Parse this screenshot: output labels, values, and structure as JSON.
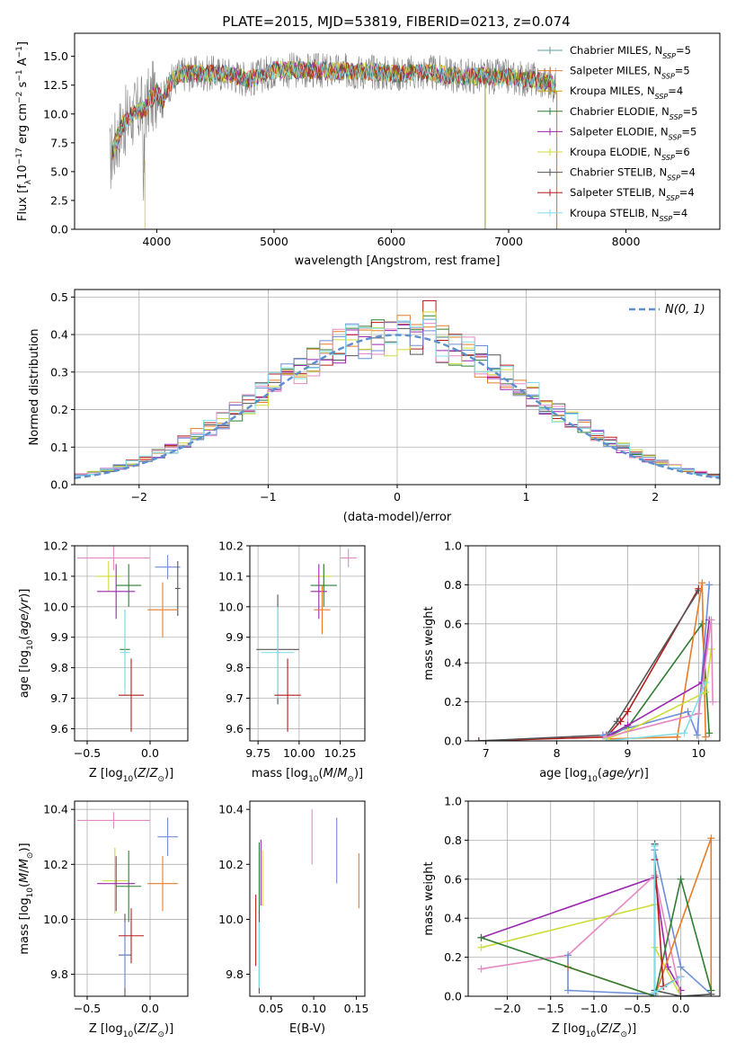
{
  "figure_title": "PLATE=2015, MJD=53819, FIBERID=0213, z=0.074",
  "colors": [
    "#5f9ea0",
    "#e87d2a",
    "#d4a017",
    "#2e7d32",
    "#9c27b0",
    "#cddc39",
    "#555555",
    "#b71c1c",
    "#80deea",
    "#e589c2",
    "#6d8fd6"
  ],
  "chart_data": [
    {
      "id": "spectrum",
      "type": "line",
      "xlabel": "wavelength [Angstrom, rest frame]",
      "ylabel": "Flux [f",
      "ylabel_parts": [
        "Flux [f",
        "λ",
        "10",
        "−17",
        " erg cm",
        "−2",
        " s",
        "−1",
        " A",
        "−1",
        "]"
      ],
      "xlim": [
        3300,
        8800
      ],
      "ylim": [
        0,
        17
      ],
      "xticks": [
        4000,
        5000,
        6000,
        7000,
        8000
      ],
      "yticks": [
        0.0,
        2.5,
        5.0,
        7.5,
        10.0,
        12.5,
        15.0
      ],
      "observed_color": "#808080",
      "continuum_x": [
        3600,
        3650,
        3700,
        3800,
        3900,
        4000,
        4050,
        4100,
        4200,
        4400,
        4600,
        4800,
        5000,
        5200,
        5500,
        5800,
        6000,
        6300,
        6600,
        7000,
        7200,
        7300,
        7400
      ],
      "continuum_y": [
        6.0,
        7.5,
        9.0,
        10.0,
        10.5,
        12.0,
        11.0,
        12.5,
        13.5,
        13.5,
        13.5,
        13.0,
        13.8,
        13.8,
        13.7,
        13.7,
        13.5,
        13.6,
        13.3,
        13.2,
        13.0,
        12.8,
        12.5
      ],
      "legend_position": "upper right",
      "legend": [
        {
          "label": "Chabrier MILES, N",
          "sub": "SSP",
          "suffix": "=5"
        },
        {
          "label": "Salpeter MILES, N",
          "sub": "SSP",
          "suffix": "=5"
        },
        {
          "label": "Kroupa MILES, N",
          "sub": "SSP",
          "suffix": "=4"
        },
        {
          "label": "Chabrier ELODIE, N",
          "sub": "SSP",
          "suffix": "=5"
        },
        {
          "label": "Salpeter ELODIE, N",
          "sub": "SSP",
          "suffix": "=5"
        },
        {
          "label": "Kroupa ELODIE, N",
          "sub": "SSP",
          "suffix": "=6"
        },
        {
          "label": "Chabrier STELIB, N",
          "sub": "SSP",
          "suffix": "=4"
        },
        {
          "label": "Salpeter STELIB, N",
          "sub": "SSP",
          "suffix": "=4"
        },
        {
          "label": "Kroupa STELIB, N",
          "sub": "SSP",
          "suffix": "=4"
        }
      ],
      "legend_color_index": [
        0,
        1,
        2,
        3,
        4,
        5,
        6,
        7,
        8
      ]
    },
    {
      "id": "residuals",
      "type": "histogram",
      "xlabel": "(data-model)/error",
      "ylabel": "Normed distribution",
      "xlim": [
        -2.5,
        2.5
      ],
      "ylim": [
        0,
        0.52
      ],
      "xticks": [
        -2,
        -1,
        0,
        1,
        2
      ],
      "yticks": [
        0.0,
        0.1,
        0.2,
        0.3,
        0.4,
        0.5
      ],
      "grid": true,
      "gaussian_label": "N(0, 1)",
      "gaussian_color": "#5b8fd0",
      "legend_position": "upper right",
      "bin_width": 0.1,
      "series_colors": [
        "#2e7d32",
        "#e87d2a",
        "#555555",
        "#b71c1c",
        "#9c27b0",
        "#cddc39",
        "#e589c2",
        "#6d8fd6",
        "#80deea"
      ],
      "peak_values": [
        0.45,
        0.42,
        0.44,
        0.49,
        0.44,
        0.46,
        0.43,
        0.41,
        0.44
      ]
    },
    {
      "id": "age_vs_Z",
      "type": "errorbar",
      "xlabel": "Z [log10(Z/Z⊙)]",
      "ylabel": "age  [log10(age/yr)]",
      "xlim": [
        -0.6,
        0.3
      ],
      "ylim": [
        9.56,
        10.2
      ],
      "xticks": [
        -0.5,
        0.0
      ],
      "yticks": [
        9.6,
        9.7,
        9.8,
        9.9,
        10.0,
        10.1,
        10.2
      ],
      "grid": true,
      "points": [
        {
          "x": -0.29,
          "y": 10.16,
          "xerr": 0.29,
          "yerr": 0.04,
          "c": "#e589c2"
        },
        {
          "x": 0.14,
          "y": 10.13,
          "xerr": 0.1,
          "yerr": 0.04,
          "c": "#6d8fd6"
        },
        {
          "x": 0.22,
          "y": 10.06,
          "xerr": 0.02,
          "yerr": 0.09,
          "c": "#555555"
        },
        {
          "x": -0.33,
          "y": 10.1,
          "xerr": 0.1,
          "yerr": 0.05,
          "c": "#cddc39"
        },
        {
          "x": -0.17,
          "y": 10.07,
          "xerr": 0.1,
          "yerr": 0.07,
          "c": "#2e7d32"
        },
        {
          "x": -0.27,
          "y": 10.05,
          "xerr": 0.15,
          "yerr": 0.09,
          "c": "#9c27b0"
        },
        {
          "x": 0.1,
          "y": 9.99,
          "xerr": 0.12,
          "yerr": 0.09,
          "c": "#e87d2a"
        },
        {
          "x": -0.2,
          "y": 9.86,
          "xerr": 0.04,
          "yerr": 0.13,
          "c": "#2e7d32"
        },
        {
          "x": -0.2,
          "y": 9.85,
          "xerr": 0.04,
          "yerr": 0.14,
          "c": "#80deea"
        },
        {
          "x": -0.15,
          "y": 9.71,
          "xerr": 0.1,
          "yerr": 0.12,
          "c": "#b71c1c"
        }
      ]
    },
    {
      "id": "age_vs_mass",
      "type": "errorbar",
      "xlabel": "mass [log10(M/M⊙)]",
      "ylabel": "",
      "xlim": [
        9.7,
        10.4
      ],
      "ylim": [
        9.56,
        10.2
      ],
      "xticks": [
        9.75,
        10.0,
        10.25
      ],
      "yticks": [
        9.6,
        9.7,
        9.8,
        9.9,
        10.0,
        10.1,
        10.2
      ],
      "grid": true,
      "points": [
        {
          "x": 10.3,
          "y": 10.16,
          "xerr": 0.05,
          "yerr": 0.03,
          "c": "#e589c2"
        },
        {
          "x": 10.15,
          "y": 10.1,
          "xerr": 0.05,
          "yerr": 0.04,
          "c": "#cddc39"
        },
        {
          "x": 10.15,
          "y": 10.07,
          "xerr": 0.08,
          "yerr": 0.07,
          "c": "#2e7d32"
        },
        {
          "x": 10.12,
          "y": 10.05,
          "xerr": 0.05,
          "yerr": 0.09,
          "c": "#9c27b0"
        },
        {
          "x": 10.14,
          "y": 9.99,
          "xerr": 0.05,
          "yerr": 0.08,
          "c": "#e87d2a"
        },
        {
          "x": 9.87,
          "y": 9.86,
          "xerr": 0.13,
          "yerr": 0.18,
          "c": "#555555"
        },
        {
          "x": 9.87,
          "y": 9.85,
          "xerr": 0.1,
          "yerr": 0.15,
          "c": "#80deea"
        },
        {
          "x": 9.93,
          "y": 9.71,
          "xerr": 0.08,
          "yerr": 0.12,
          "c": "#b71c1c"
        }
      ]
    },
    {
      "id": "weight_vs_age",
      "type": "line",
      "xlabel": "age  [log10(age/yr)]",
      "ylabel": "mass weight",
      "xlim": [
        6.75,
        10.3
      ],
      "ylim": [
        0,
        1.0
      ],
      "xticks": [
        7,
        8,
        9,
        10
      ],
      "yticks": [
        0.0,
        0.2,
        0.4,
        0.6,
        0.8,
        1.0
      ],
      "grid": true,
      "series": [
        {
          "c": "#b71c1c",
          "x": [
            6.9,
            8.7,
            8.9,
            9.0,
            10.0
          ],
          "y": [
            0.0,
            0.02,
            0.1,
            0.15,
            0.78
          ]
        },
        {
          "c": "#555555",
          "x": [
            6.9,
            8.7,
            8.85,
            10.0
          ],
          "y": [
            0.0,
            0.03,
            0.1,
            0.77
          ]
        },
        {
          "c": "#2e7d32",
          "x": [
            8.7,
            9.0,
            10.05,
            10.15
          ],
          "y": [
            0.02,
            0.07,
            0.6,
            0.04
          ]
        },
        {
          "c": "#e87d2a",
          "x": [
            8.7,
            9.7,
            10.05,
            10.1
          ],
          "y": [
            0.01,
            0.02,
            0.81,
            0.02
          ]
        },
        {
          "c": "#6d8fd6",
          "x": [
            8.65,
            9.85,
            9.98,
            10.15
          ],
          "y": [
            0.03,
            0.15,
            0.03,
            0.8
          ]
        },
        {
          "c": "#9c27b0",
          "x": [
            8.7,
            9.0,
            10.05,
            10.15
          ],
          "y": [
            0.02,
            0.08,
            0.3,
            0.62
          ]
        },
        {
          "c": "#cddc39",
          "x": [
            8.7,
            9.0,
            10.1,
            10.18
          ],
          "y": [
            0.01,
            0.05,
            0.25,
            0.47
          ]
        },
        {
          "c": "#e589c2",
          "x": [
            8.7,
            10.0,
            10.18,
            10.2
          ],
          "y": [
            0.02,
            0.14,
            0.62,
            0.2
          ]
        },
        {
          "c": "#80deea",
          "x": [
            8.7,
            9.8,
            10.1
          ],
          "y": [
            0.0,
            0.04,
            0.3
          ]
        }
      ]
    },
    {
      "id": "mass_vs_Z",
      "type": "errorbar",
      "xlabel": "Z [log10(Z/Z⊙)]",
      "ylabel": "mass [log10(M/M⊙)]",
      "xlim": [
        -0.6,
        0.3
      ],
      "ylim": [
        9.72,
        10.43
      ],
      "xticks": [
        -0.5,
        0.0
      ],
      "yticks": [
        9.8,
        10.0,
        10.2,
        10.4
      ],
      "grid": true,
      "points": [
        {
          "x": -0.29,
          "y": 10.36,
          "xerr": 0.29,
          "yerr": 0.03,
          "c": "#e589c2"
        },
        {
          "x": 0.14,
          "y": 10.3,
          "xerr": 0.08,
          "yerr": 0.07,
          "c": "#6d8fd6"
        },
        {
          "x": -0.28,
          "y": 10.14,
          "xerr": 0.1,
          "yerr": 0.12,
          "c": "#cddc39"
        },
        {
          "x": -0.17,
          "y": 10.12,
          "xerr": 0.1,
          "yerr": 0.13,
          "c": "#2e7d32"
        },
        {
          "x": -0.27,
          "y": 10.13,
          "xerr": 0.15,
          "yerr": 0.1,
          "c": "#9c27b0"
        },
        {
          "x": 0.1,
          "y": 10.13,
          "xerr": 0.12,
          "yerr": 0.1,
          "c": "#e87d2a"
        },
        {
          "x": -0.2,
          "y": 9.87,
          "xerr": 0.05,
          "yerr": 0.15,
          "c": "#555555"
        },
        {
          "x": -0.2,
          "y": 9.87,
          "xerr": 0.04,
          "yerr": 0.12,
          "c": "#6d8fd6"
        },
        {
          "x": -0.15,
          "y": 9.94,
          "xerr": 0.1,
          "yerr": 0.1,
          "c": "#b71c1c"
        }
      ]
    },
    {
      "id": "mass_vs_ebv",
      "type": "errorbar",
      "xlabel": "E(B-V)",
      "ylabel": "",
      "xlim": [
        0.025,
        0.16
      ],
      "ylim": [
        9.72,
        10.43
      ],
      "xticks": [
        0.05,
        0.1,
        0.15
      ],
      "yticks": [
        9.8,
        10.0,
        10.2,
        10.4
      ],
      "grid": false,
      "points": [
        {
          "x": 0.098,
          "y": 10.3,
          "xerr": 0.0,
          "yerr": 0.1,
          "c": "#e589c2"
        },
        {
          "x": 0.127,
          "y": 10.25,
          "xerr": 0.0,
          "yerr": 0.12,
          "c": "#6d8fd6"
        },
        {
          "x": 0.153,
          "y": 10.14,
          "xerr": 0.0,
          "yerr": 0.1,
          "c": "#e87d2a"
        },
        {
          "x": 0.036,
          "y": 10.15,
          "xerr": 0.0,
          "yerr": 0.13,
          "c": "#2e7d32"
        },
        {
          "x": 0.038,
          "y": 10.17,
          "xerr": 0.0,
          "yerr": 0.12,
          "c": "#9c27b0"
        },
        {
          "x": 0.04,
          "y": 10.15,
          "xerr": 0.0,
          "yerr": 0.1,
          "c": "#cddc39"
        },
        {
          "x": 0.032,
          "y": 9.96,
          "xerr": 0.0,
          "yerr": 0.13,
          "c": "#b71c1c"
        },
        {
          "x": 0.036,
          "y": 9.88,
          "xerr": 0.0,
          "yerr": 0.15,
          "c": "#555555"
        },
        {
          "x": 0.036,
          "y": 9.87,
          "xerr": 0.0,
          "yerr": 0.12,
          "c": "#80deea"
        }
      ]
    },
    {
      "id": "weight_vs_Z",
      "type": "line",
      "xlabel": "Z [log10(Z/Z⊙)]",
      "ylabel": "mass weight",
      "xlim": [
        -2.45,
        0.45
      ],
      "ylim": [
        0,
        1.0
      ],
      "xticks": [
        -2.0,
        -1.5,
        -1.0,
        -0.5,
        0.0
      ],
      "yticks": [
        0.0,
        0.2,
        0.4,
        0.6,
        0.8,
        1.0
      ],
      "grid": true,
      "series": [
        {
          "c": "#9c27b0",
          "x": [
            -2.3,
            -0.3,
            -0.15,
            0.0
          ],
          "y": [
            0.3,
            0.61,
            0.15,
            0.03
          ]
        },
        {
          "c": "#cddc39",
          "x": [
            -2.3,
            -0.3,
            -0.3,
            0.0
          ],
          "y": [
            0.25,
            0.47,
            0.25,
            0.0
          ]
        },
        {
          "c": "#e589c2",
          "x": [
            -2.3,
            -1.3,
            -0.3,
            0.0
          ],
          "y": [
            0.14,
            0.21,
            0.62,
            0.0
          ]
        },
        {
          "c": "#6d8fd6",
          "x": [
            -1.3,
            -1.3,
            -0.3,
            -0.3,
            0.0,
            0.35
          ],
          "y": [
            0.21,
            0.03,
            0.01,
            0.75,
            0.15,
            0.01
          ]
        },
        {
          "c": "#e87d2a",
          "x": [
            -1.3,
            -0.3,
            0.35,
            0.35
          ],
          "y": [
            0.15,
            0.0,
            0.81,
            0.01
          ]
        },
        {
          "c": "#2e7d32",
          "x": [
            -2.3,
            -0.3,
            0.0,
            0.35
          ],
          "y": [
            0.3,
            0.0,
            0.6,
            0.03
          ]
        },
        {
          "c": "#555555",
          "x": [
            -0.3,
            -0.3,
            0.0,
            0.35
          ],
          "y": [
            0.78,
            0.03,
            0.0,
            0.01
          ]
        },
        {
          "c": "#b71c1c",
          "x": [
            -0.3,
            -0.2,
            0.0
          ],
          "y": [
            0.7,
            0.05,
            0.1
          ]
        },
        {
          "c": "#80deea",
          "x": [
            -0.3,
            -0.3,
            0.0
          ],
          "y": [
            0.77,
            0.02,
            0.1
          ]
        }
      ]
    }
  ]
}
